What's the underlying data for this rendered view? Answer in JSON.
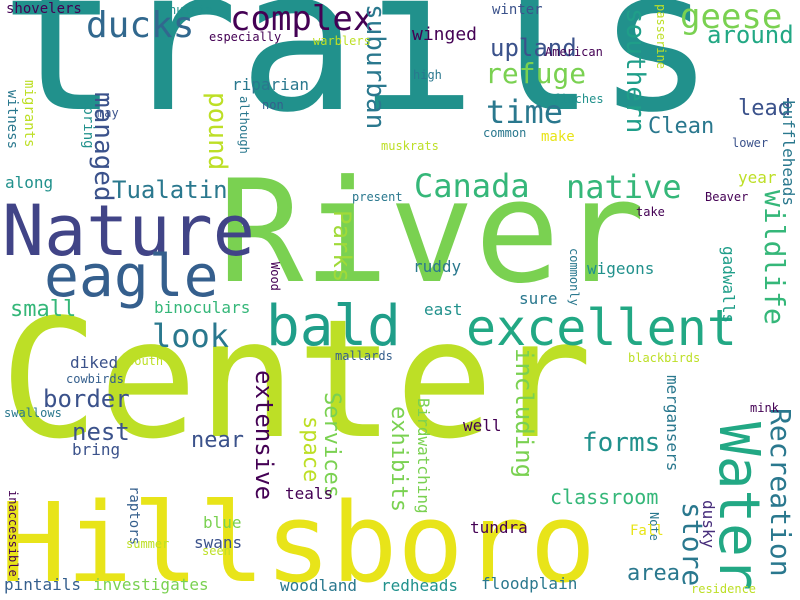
{
  "words": [
    {
      "text": "trails",
      "color": "#21918c"
    },
    {
      "text": "River",
      "color": "#7ad151"
    },
    {
      "text": "Center",
      "color": "#bddf26"
    },
    {
      "text": "Hillsboro",
      "color": "#e8e419"
    },
    {
      "text": "Nature",
      "color": "#414487"
    },
    {
      "text": "eagle",
      "color": "#355f8d"
    },
    {
      "text": "bald",
      "color": "#1f9e89"
    },
    {
      "text": "excellent",
      "color": "#22a884"
    },
    {
      "text": "Water",
      "color": "#22a884"
    },
    {
      "text": "complex",
      "color": "#440154"
    },
    {
      "text": "ducks",
      "color": "#31688e"
    },
    {
      "text": "geese",
      "color": "#7ad151"
    },
    {
      "text": "Canada",
      "color": "#35b779"
    },
    {
      "text": "native",
      "color": "#35b779"
    },
    {
      "text": "time",
      "color": "#2a788e"
    },
    {
      "text": "look",
      "color": "#2a788e"
    },
    {
      "text": "Recreation",
      "color": "#2a788e"
    },
    {
      "text": "refuge",
      "color": "#7ad151"
    },
    {
      "text": "managed",
      "color": "#3b528b"
    },
    {
      "text": "Tualatin",
      "color": "#2a788e"
    },
    {
      "text": "southern",
      "color": "#1f9e89"
    },
    {
      "text": "suburban",
      "color": "#2a788e"
    },
    {
      "text": "wildlife",
      "color": "#35b779"
    },
    {
      "text": "store",
      "color": "#2a788e"
    },
    {
      "text": "pound",
      "color": "#bddf26"
    },
    {
      "text": "Parks",
      "color": "#a0da39"
    },
    {
      "text": "forms",
      "color": "#21918c"
    },
    {
      "text": "around",
      "color": "#22a884"
    },
    {
      "text": "upland",
      "color": "#3b528b"
    },
    {
      "text": "nest",
      "color": "#3b528b"
    },
    {
      "text": "border",
      "color": "#3b528b"
    },
    {
      "text": "extensive",
      "color": "#440154"
    },
    {
      "text": "including",
      "color": "#7ad151"
    },
    {
      "text": "classroom",
      "color": "#35b779"
    },
    {
      "text": "Clean",
      "color": "#2a788e"
    },
    {
      "text": "exhibits",
      "color": "#7ad151"
    },
    {
      "text": "Services",
      "color": "#7ad151"
    },
    {
      "text": "space",
      "color": "#bddf26"
    },
    {
      "text": "small",
      "color": "#35b779"
    },
    {
      "text": "area",
      "color": "#2a788e"
    },
    {
      "text": "near",
      "color": "#3b528b"
    },
    {
      "text": "lead",
      "color": "#3b528b"
    },
    {
      "text": "winged",
      "color": "#440154"
    },
    {
      "text": "year",
      "color": "#bddf26"
    },
    {
      "text": "binoculars",
      "color": "#35b779"
    },
    {
      "text": "wigeons",
      "color": "#21918c"
    },
    {
      "text": "ruddy",
      "color": "#2a788e"
    },
    {
      "text": "buffleheads",
      "color": "#2a788e"
    },
    {
      "text": "gadwalls",
      "color": "#1f9e89"
    },
    {
      "text": "mergansers",
      "color": "#2a788e"
    },
    {
      "text": "dusky",
      "color": "#472d7b"
    },
    {
      "text": "well",
      "color": "#440154"
    },
    {
      "text": "tundra",
      "color": "#440154"
    },
    {
      "text": "riparian",
      "color": "#2a788e"
    },
    {
      "text": "diked",
      "color": "#3b528b"
    },
    {
      "text": "bring",
      "color": "#3b528b"
    },
    {
      "text": "swans",
      "color": "#3b528b"
    },
    {
      "text": "blue",
      "color": "#7ad151"
    },
    {
      "text": "teals",
      "color": "#440154"
    },
    {
      "text": "woodland",
      "color": "#2a788e"
    },
    {
      "text": "redheads",
      "color": "#21918c"
    },
    {
      "text": "floodplain",
      "color": "#2a788e"
    },
    {
      "text": "pintails",
      "color": "#355f8d"
    },
    {
      "text": "investigates",
      "color": "#7ad151"
    },
    {
      "text": "along",
      "color": "#21918c"
    },
    {
      "text": "east",
      "color": "#21918c"
    },
    {
      "text": "sure",
      "color": "#2a788e"
    },
    {
      "text": "Birdwatching",
      "color": "#7ad151"
    },
    {
      "text": "raptors",
      "color": "#355f8d"
    },
    {
      "text": "witness",
      "color": "#2a788e"
    },
    {
      "text": "migrants",
      "color": "#bddf26"
    },
    {
      "text": "spring",
      "color": "#21918c"
    },
    {
      "text": "shovelers",
      "color": "#440154"
    },
    {
      "text": "nutria",
      "color": "#21918c"
    },
    {
      "text": "especially",
      "color": "#440154"
    },
    {
      "text": "warblers",
      "color": "#bddf26"
    },
    {
      "text": "winter",
      "color": "#3b528b"
    },
    {
      "text": "American",
      "color": "#440154"
    },
    {
      "text": "passerine",
      "color": "#bddf26"
    },
    {
      "text": "high",
      "color": "#2a788e"
    },
    {
      "text": "non",
      "color": "#355f8d"
    },
    {
      "text": "although",
      "color": "#2a788e"
    },
    {
      "text": "may",
      "color": "#3b528b"
    },
    {
      "text": "finches",
      "color": "#21918c"
    },
    {
      "text": "common",
      "color": "#2a788e"
    },
    {
      "text": "make",
      "color": "#e8e419"
    },
    {
      "text": "lower",
      "color": "#3b528b"
    },
    {
      "text": "muskrats",
      "color": "#bddf26"
    },
    {
      "text": "present",
      "color": "#2a788e"
    },
    {
      "text": "Beaver",
      "color": "#440154"
    },
    {
      "text": "take",
      "color": "#440154"
    },
    {
      "text": "Wood",
      "color": "#440154"
    },
    {
      "text": "commonly",
      "color": "#2a788e"
    },
    {
      "text": "mallards",
      "color": "#355f8d"
    },
    {
      "text": "South",
      "color": "#bddf26"
    },
    {
      "text": "cowbirds",
      "color": "#355f8d"
    },
    {
      "text": "swallows",
      "color": "#2a788e"
    },
    {
      "text": "blackbirds",
      "color": "#bddf26"
    },
    {
      "text": "mink",
      "color": "#440154"
    },
    {
      "text": "inaccessible",
      "color": "#440154"
    },
    {
      "text": "summer",
      "color": "#bddf26"
    },
    {
      "text": "seen",
      "color": "#bddf26"
    },
    {
      "text": "Note",
      "color": "#2a788e"
    },
    {
      "text": "Fall",
      "color": "#e8e419"
    },
    {
      "text": "residence",
      "color": "#bddf26"
    }
  ]
}
